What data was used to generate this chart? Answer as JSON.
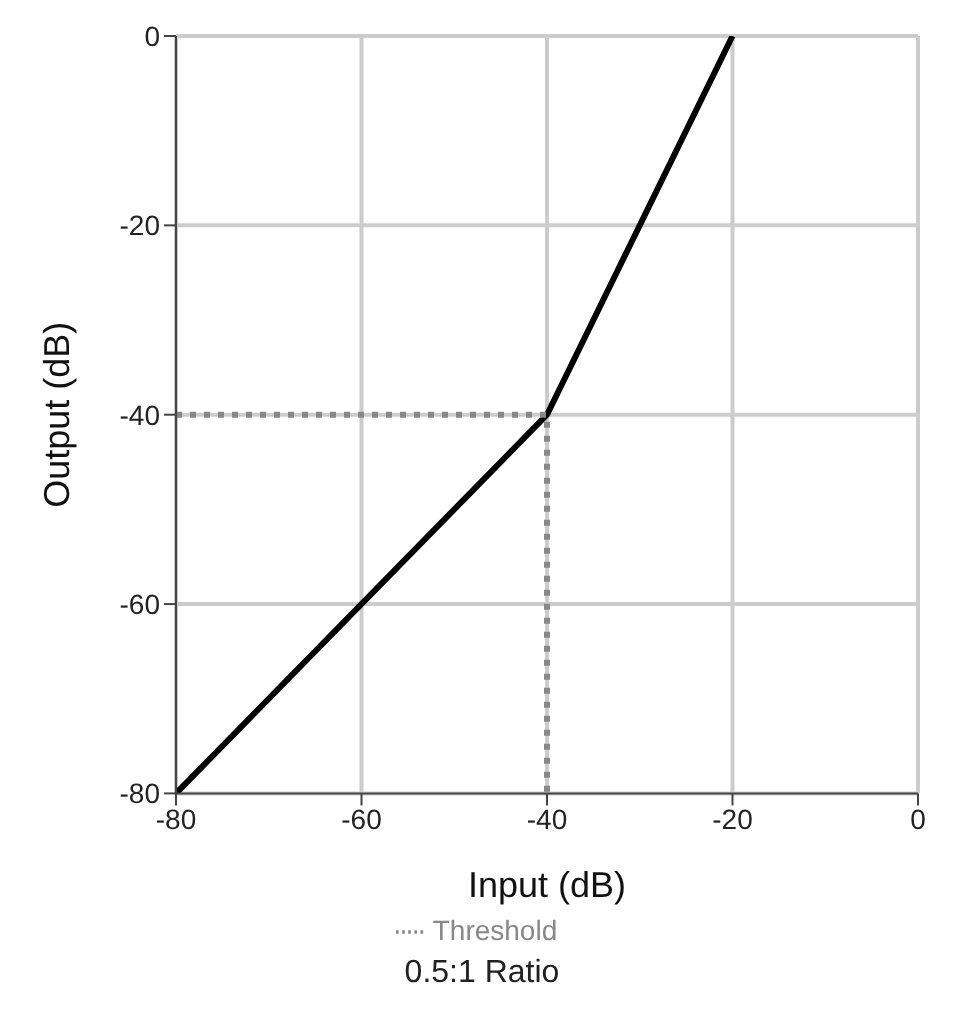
{
  "chart_data": {
    "type": "line",
    "xlabel": "Input (dB)",
    "ylabel": "Output (dB)",
    "annotations": [
      "0.5:1 Ratio"
    ],
    "series": [
      {
        "color": "#000000",
        "x": [
          -80,
          -40,
          -20
        ],
        "values": [
          -80,
          -40,
          0
        ]
      },
      {
        "name": "Threshold",
        "color": "#888888",
        "line_style": "dotted",
        "x": [
          -80,
          -40,
          -40
        ],
        "values": [
          -40,
          -40,
          -80
        ]
      }
    ],
    "xlim": [
      -80,
      0
    ],
    "xticks": [
      -80,
      -60,
      -40,
      -20,
      0
    ],
    "ylim": [
      -80,
      0
    ],
    "yticks": [
      -80,
      -60,
      -40,
      -20,
      0
    ],
    "grid": true,
    "legend": "bottom",
    "marker": "none"
  }
}
